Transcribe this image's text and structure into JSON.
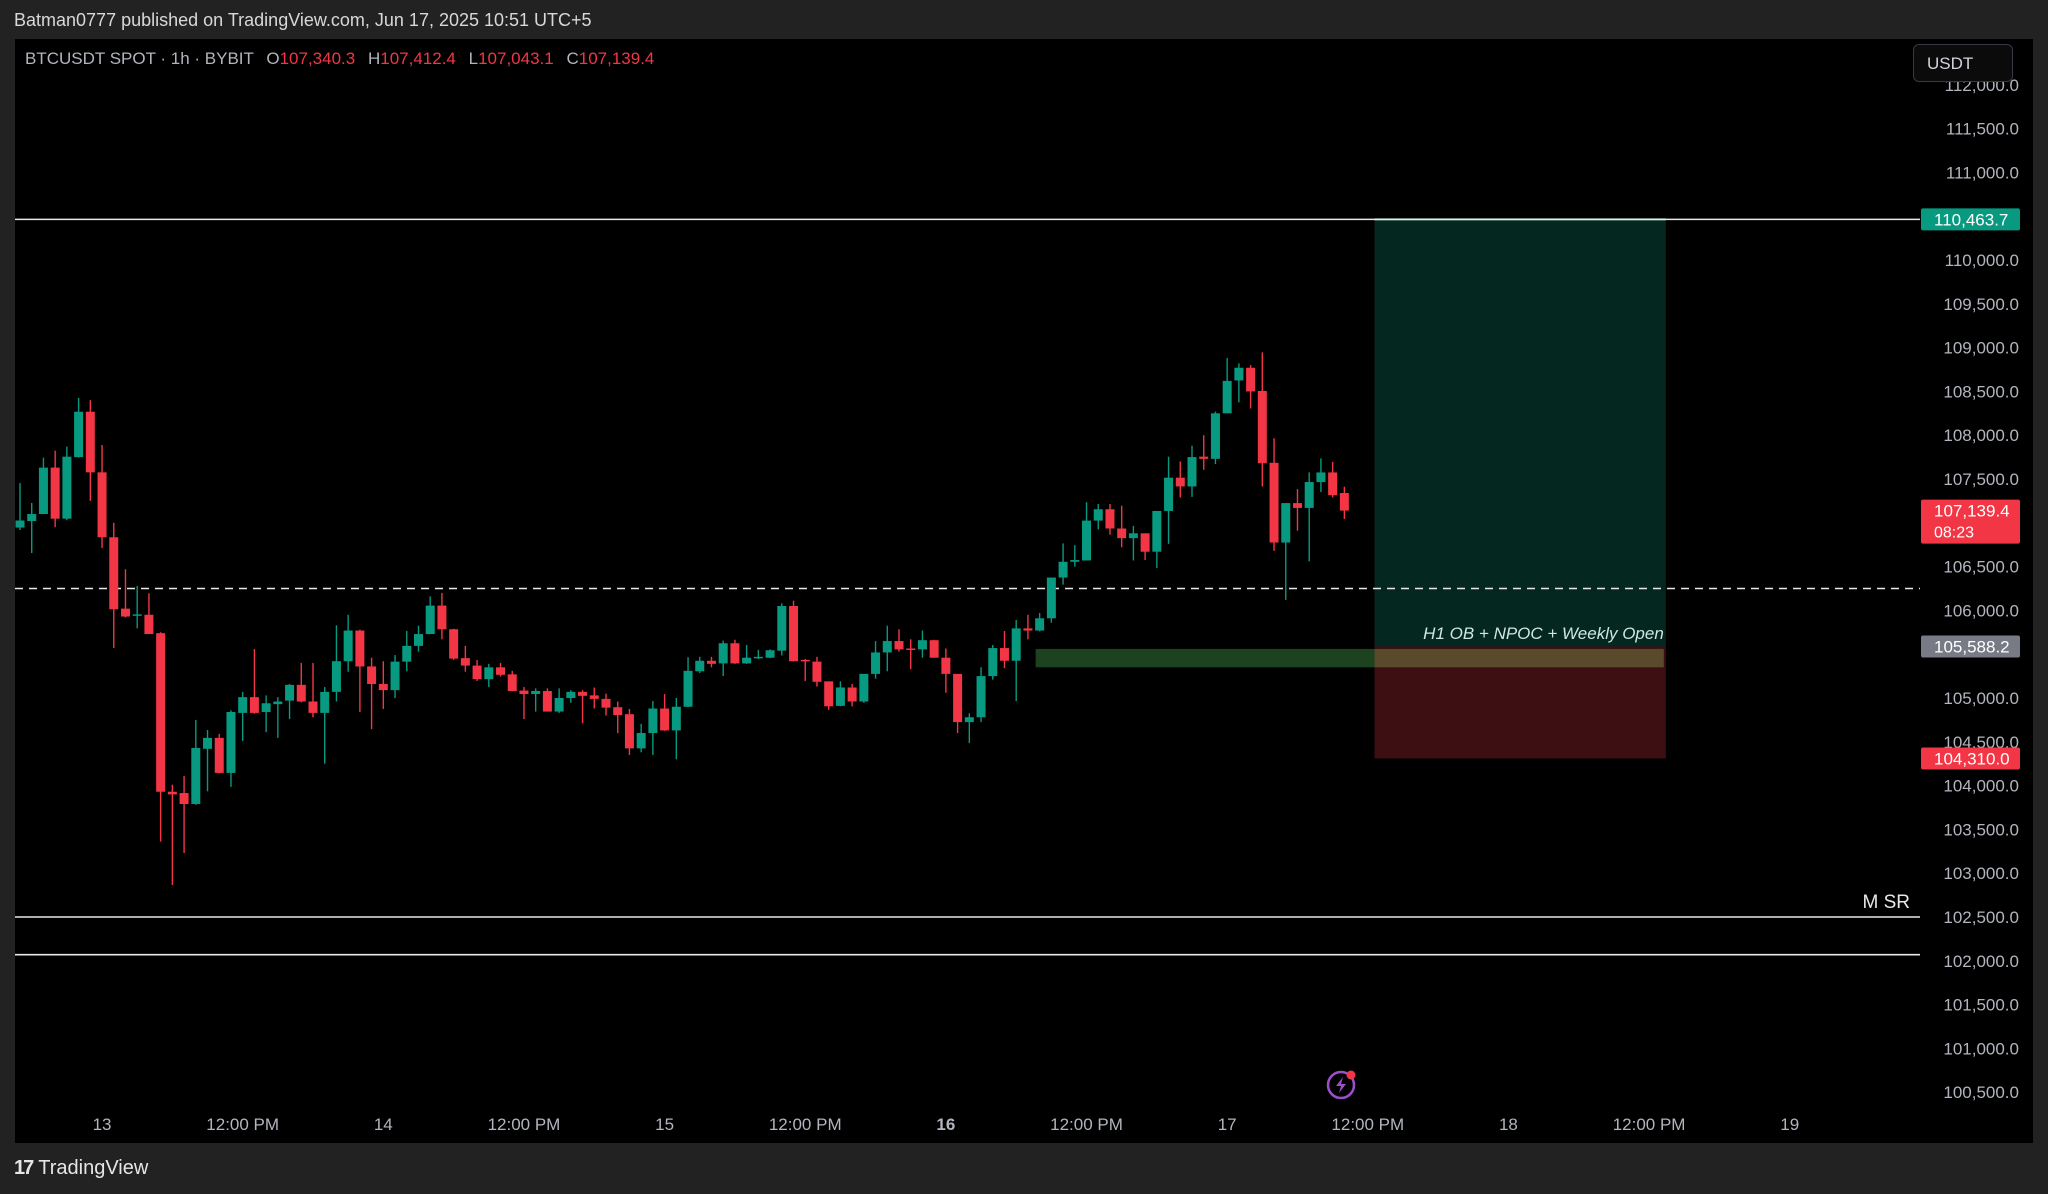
{
  "publish_info": "Batman0777 published on TradingView.com, Jun 17, 2025 10:51 UTC+5",
  "header": {
    "symbol": "BTCUSDT SPOT · 1h · BYBIT",
    "open_label": "O",
    "open": "107,340.3",
    "high_label": "H",
    "high": "107,412.4",
    "low_label": "L",
    "low": "107,043.1",
    "close_label": "C",
    "close": "107,139.4"
  },
  "currency_button": "USDT",
  "footer": {
    "brand": "TradingView",
    "logo_mark": "17"
  },
  "colors": {
    "up": "#089981",
    "down": "#f23645",
    "background": "#000000",
    "target_zone": "#04271f",
    "stop_zone": "#3d0f13",
    "ob_zone": "#1d4220",
    "target_label_bg": "#089981",
    "stop_label_bg": "#f23645",
    "entry_label_bg": "#787b86"
  },
  "chart_data": {
    "type": "candlestick",
    "title": "BTCUSDT SPOT · 1h · BYBIT",
    "xlabel": "",
    "ylabel": "USDT",
    "ylim": [
      100250,
      112100
    ],
    "grid": false,
    "x_tick_labels": [
      "13",
      "12:00 PM",
      "14",
      "12:00 PM",
      "15",
      "12:00 PM",
      "16",
      "12:00 PM",
      "17",
      "12:00 PM",
      "18",
      "12:00 PM",
      "19"
    ],
    "y_tick_labels": [
      "112,000.0",
      "111,500.0",
      "111,000.0",
      "110,000.0",
      "109,500.0",
      "109,000.0",
      "108,500.0",
      "108,000.0",
      "107,500.0",
      "106,500.0",
      "106,000.0",
      "105,000.0",
      "104,500.0",
      "104,000.0",
      "103,500.0",
      "103,000.0",
      "102,500.0",
      "102,000.0",
      "101,500.0",
      "101,000.0",
      "100,500.0"
    ],
    "first_candle": "Jun 12 17:00",
    "interval": "1h",
    "ohlc": [
      [
        106946,
        107454,
        106918,
        107026
      ],
      [
        107020,
        107226,
        106655,
        107100
      ],
      [
        107100,
        107743,
        107100,
        107630
      ],
      [
        107630,
        107823,
        106950,
        107047
      ],
      [
        107047,
        107870,
        107030,
        107755
      ],
      [
        107750,
        108425,
        107745,
        108268
      ],
      [
        108268,
        108400,
        107250,
        107576
      ],
      [
        107576,
        107888,
        106712,
        106835
      ],
      [
        106835,
        107000,
        105570,
        106013
      ],
      [
        106020,
        106470,
        105920,
        105930
      ],
      [
        105950,
        106280,
        105795,
        105955
      ],
      [
        105950,
        106195,
        105730,
        105730
      ],
      [
        105740,
        105750,
        103360,
        103930
      ],
      [
        103930,
        104010,
        102865,
        103900
      ],
      [
        103915,
        104110,
        103230,
        103790
      ],
      [
        103790,
        104750,
        103780,
        104430
      ],
      [
        104420,
        104635,
        103935,
        104545
      ],
      [
        104545,
        104590,
        104140,
        104145
      ],
      [
        104145,
        104860,
        103985,
        104840
      ],
      [
        104830,
        105070,
        104510,
        105010
      ],
      [
        105010,
        105560,
        104820,
        104830
      ],
      [
        104840,
        105030,
        104610,
        104940
      ],
      [
        104930,
        105010,
        104545,
        104960
      ],
      [
        104970,
        105160,
        104760,
        105150
      ],
      [
        105150,
        105400,
        104950,
        104960
      ],
      [
        104960,
        105400,
        104780,
        104830
      ],
      [
        104830,
        105125,
        104250,
        105070
      ],
      [
        105070,
        105830,
        104960,
        105420
      ],
      [
        105420,
        105950,
        105300,
        105770
      ],
      [
        105770,
        105780,
        104840,
        105360
      ],
      [
        105360,
        105460,
        104645,
        105160
      ],
      [
        105160,
        105420,
        104875,
        105090
      ],
      [
        105090,
        105490,
        105000,
        105415
      ],
      [
        105415,
        105765,
        105305,
        105595
      ],
      [
        105595,
        105825,
        105530,
        105730
      ],
      [
        105730,
        106160,
        105730,
        106055
      ],
      [
        106055,
        106200,
        105670,
        105785
      ],
      [
        105785,
        105790,
        105435,
        105450
      ],
      [
        105455,
        105595,
        105300,
        105370
      ],
      [
        105370,
        105435,
        105195,
        105215
      ],
      [
        105215,
        105390,
        105125,
        105350
      ],
      [
        105350,
        105400,
        105245,
        105265
      ],
      [
        105270,
        105310,
        105075,
        105080
      ],
      [
        105085,
        105125,
        104760,
        105045
      ],
      [
        105045,
        105110,
        104845,
        105080
      ],
      [
        105080,
        105110,
        104845,
        104845
      ],
      [
        104845,
        105110,
        104830,
        105000
      ],
      [
        105000,
        105090,
        104945,
        105070
      ],
      [
        105070,
        105090,
        104710,
        105025
      ],
      [
        105030,
        105120,
        104880,
        104990
      ],
      [
        104990,
        105050,
        104800,
        104890
      ],
      [
        104895,
        104960,
        104600,
        104805
      ],
      [
        104815,
        104875,
        104350,
        104425
      ],
      [
        104425,
        104705,
        104380,
        104600
      ],
      [
        104600,
        104965,
        104350,
        104880
      ],
      [
        104880,
        105045,
        104625,
        104630
      ],
      [
        104630,
        105000,
        104300,
        104900
      ],
      [
        104900,
        105465,
        104895,
        105310
      ],
      [
        105305,
        105470,
        105285,
        105425
      ],
      [
        105425,
        105470,
        105350,
        105390
      ],
      [
        105395,
        105655,
        105250,
        105625
      ],
      [
        105625,
        105665,
        105390,
        105395
      ],
      [
        105395,
        105605,
        105390,
        105460
      ],
      [
        105465,
        105550,
        105445,
        105470
      ],
      [
        105460,
        105555,
        105455,
        105545
      ],
      [
        105540,
        106080,
        105485,
        106050
      ],
      [
        106050,
        106110,
        105415,
        105420
      ],
      [
        105435,
        105445,
        105195,
        105420
      ],
      [
        105415,
        105470,
        105130,
        105185
      ],
      [
        105190,
        105190,
        104865,
        104905
      ],
      [
        104910,
        105190,
        104905,
        105120
      ],
      [
        105120,
        105160,
        104905,
        104960
      ],
      [
        104960,
        105275,
        104945,
        105275
      ],
      [
        105275,
        105650,
        105220,
        105520
      ],
      [
        105520,
        105825,
        105305,
        105650
      ],
      [
        105650,
        105785,
        105530,
        105555
      ],
      [
        105565,
        105670,
        105330,
        105555
      ],
      [
        105555,
        105770,
        105460,
        105660
      ],
      [
        105660,
        105665,
        105460,
        105460
      ],
      [
        105460,
        105565,
        105060,
        105275
      ],
      [
        105275,
        105275,
        104600,
        104725
      ],
      [
        104725,
        104825,
        104485,
        104780
      ],
      [
        104780,
        105350,
        104725,
        105250
      ],
      [
        105250,
        105605,
        105210,
        105570
      ],
      [
        105570,
        105765,
        105340,
        105425
      ],
      [
        105425,
        105890,
        104965,
        105795
      ],
      [
        105795,
        105950,
        105670,
        105770
      ],
      [
        105770,
        105970,
        105760,
        105910
      ],
      [
        105910,
        106375,
        105860,
        106375
      ],
      [
        106375,
        106765,
        106295,
        106555
      ],
      [
        106555,
        106745,
        106500,
        106575
      ],
      [
        106570,
        107235,
        106570,
        107025
      ],
      [
        107025,
        107215,
        106925,
        107155
      ],
      [
        107155,
        107215,
        106865,
        106935
      ],
      [
        106935,
        107195,
        106720,
        106825
      ],
      [
        106825,
        106965,
        106570,
        106880
      ],
      [
        106880,
        106880,
        106575,
        106670
      ],
      [
        106670,
        107135,
        106485,
        107135
      ],
      [
        107135,
        107755,
        106760,
        107515
      ],
      [
        107515,
        107700,
        107290,
        107415
      ],
      [
        107415,
        107880,
        107295,
        107750
      ],
      [
        107755,
        108000,
        107605,
        107730
      ],
      [
        107730,
        108270,
        107670,
        108250
      ],
      [
        108250,
        108880,
        108250,
        108620
      ],
      [
        108625,
        108820,
        108375,
        108770
      ],
      [
        108770,
        108800,
        108305,
        108500
      ],
      [
        108505,
        108945,
        107415,
        107680
      ],
      [
        107685,
        107965,
        106680,
        106775
      ],
      [
        106775,
        107225,
        106120,
        107225
      ],
      [
        107225,
        107385,
        106910,
        107170
      ],
      [
        107170,
        107575,
        106560,
        107465
      ],
      [
        107465,
        107735,
        107350,
        107575
      ],
      [
        107575,
        107695,
        107290,
        107315
      ],
      [
        107340.3,
        107412.4,
        107043.1,
        107139.4
      ]
    ],
    "horizontal_lines": [
      {
        "name": "target-line",
        "price": 110463.7,
        "style": "solid"
      },
      {
        "name": "dashed-level",
        "price": 106250,
        "style": "dashed"
      },
      {
        "name": "m-sr-upper",
        "price": 102500,
        "style": "solid",
        "label": "M SR"
      },
      {
        "name": "m-sr-lower",
        "price": 102070,
        "style": "solid"
      }
    ],
    "long_position": {
      "entry": 105588.2,
      "target": 110463.7,
      "stop": 104310.0,
      "start_candle": 116,
      "end_candle": 140
    },
    "zone": {
      "label": "H1 OB + NPOC + Weekly Open",
      "top": 105560,
      "bottom": 105350,
      "start_candle": 87
    },
    "price_labels": [
      {
        "text": "110,463.7",
        "price": 110463.7,
        "kind": "target"
      },
      {
        "text": "107,139.4",
        "sub": "08:23",
        "price": 107139.4,
        "kind": "last"
      },
      {
        "text": "105,588.2",
        "price": 105588.2,
        "kind": "entry"
      },
      {
        "text": "104,310.0",
        "price": 104310.0,
        "kind": "stop"
      }
    ]
  }
}
